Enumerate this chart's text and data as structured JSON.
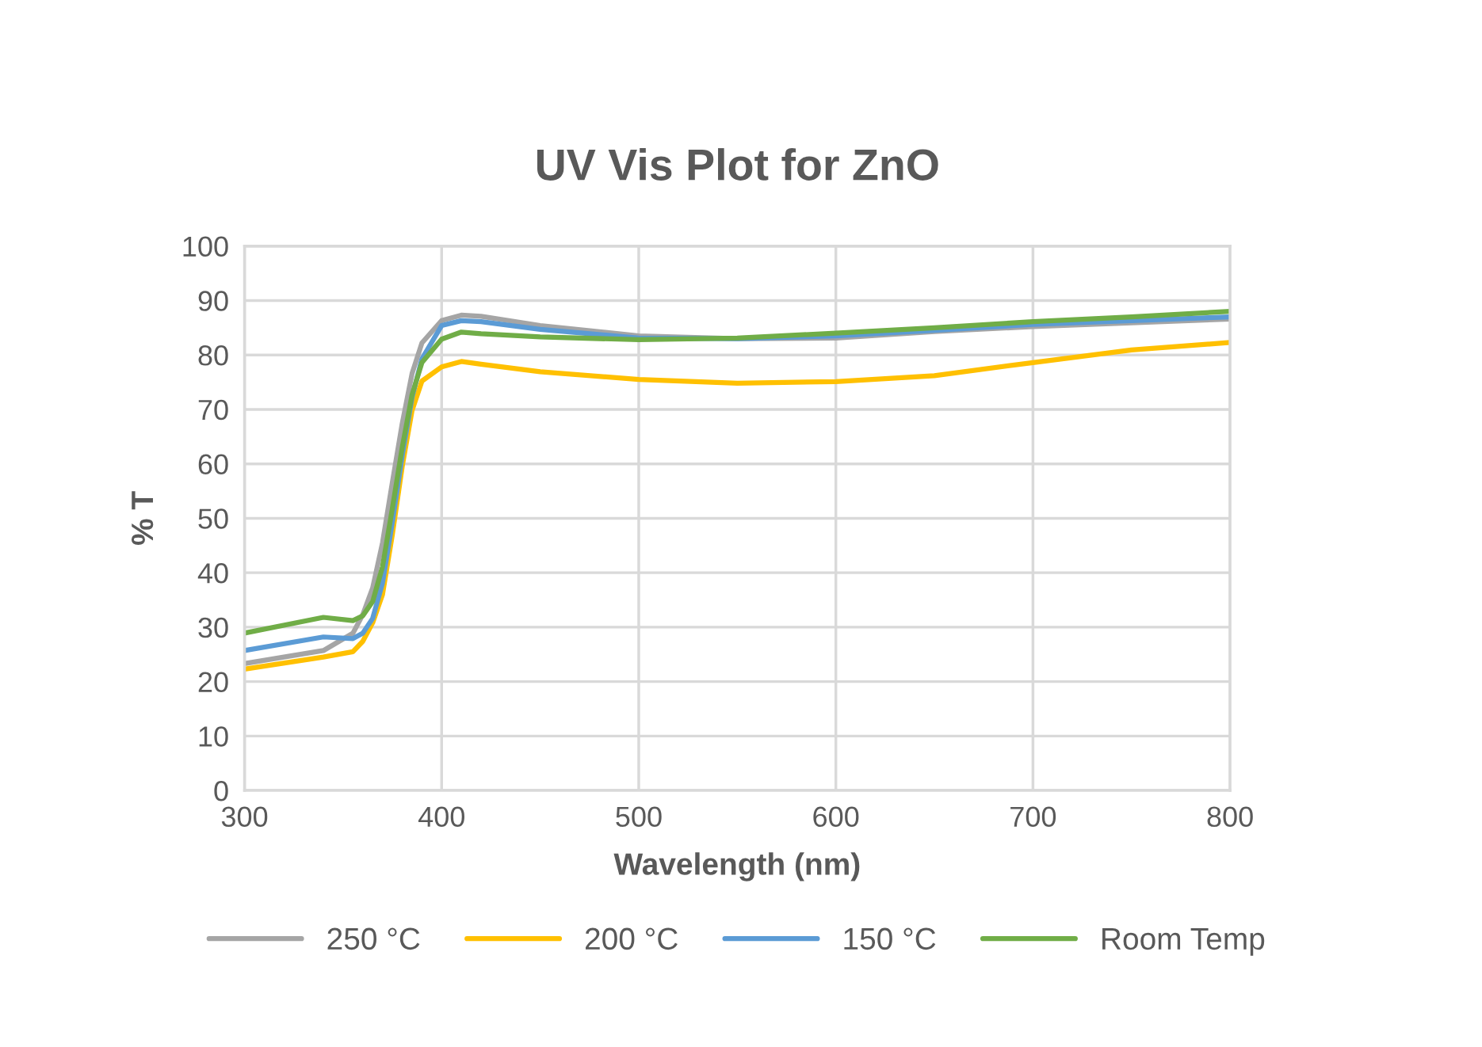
{
  "chart_data": {
    "type": "line",
    "title": "UV Vis Plot for ZnO",
    "xlabel": "Wavelength (nm)",
    "ylabel": "% T",
    "x": [
      300,
      340,
      355,
      360,
      365,
      370,
      375,
      380,
      385,
      390,
      400,
      410,
      420,
      450,
      500,
      550,
      600,
      650,
      700,
      750,
      800
    ],
    "series": [
      {
        "name": "250 °C",
        "color": "#a5a5a5",
        "values": [
          23.3,
          25.7,
          28.9,
          32.3,
          37.2,
          45.5,
          56.6,
          67.4,
          76.6,
          82.2,
          86.3,
          87.3,
          87.1,
          85.4,
          83.5,
          83.0,
          83.1,
          84.3,
          85.2,
          85.9,
          86.6
        ]
      },
      {
        "name": "200 °C",
        "color": "#ffc000",
        "values": [
          22.3,
          24.5,
          25.5,
          27.4,
          30.8,
          36.0,
          47.0,
          59.5,
          69.8,
          75.2,
          77.8,
          78.8,
          78.3,
          76.9,
          75.5,
          74.8,
          75.1,
          76.2,
          78.6,
          80.9,
          82.3
        ]
      },
      {
        "name": "150 °C",
        "color": "#5b9bd5",
        "values": [
          25.7,
          28.2,
          27.9,
          28.9,
          31.6,
          38.1,
          49.3,
          61.5,
          72.2,
          79.3,
          85.4,
          86.3,
          86.1,
          84.7,
          83.1,
          83.0,
          83.5,
          84.5,
          85.6,
          86.3,
          87.0
        ]
      },
      {
        "name": "Room Temp",
        "color": "#70ad47",
        "values": [
          28.9,
          31.8,
          31.2,
          32.1,
          34.7,
          41.1,
          51.8,
          63.0,
          72.7,
          78.6,
          82.9,
          84.2,
          83.9,
          83.3,
          82.8,
          83.1,
          84.0,
          85.0,
          86.1,
          87.0,
          88.0
        ]
      }
    ],
    "xlim": [
      300,
      800
    ],
    "xticks": [
      300,
      400,
      500,
      600,
      700,
      800
    ],
    "ylim": [
      0,
      100
    ],
    "yticks": [
      0,
      10,
      20,
      30,
      40,
      50,
      60,
      70,
      80,
      90,
      100
    ],
    "grid": true,
    "legend": "bottom",
    "marker": "none",
    "line_style": "solid"
  }
}
